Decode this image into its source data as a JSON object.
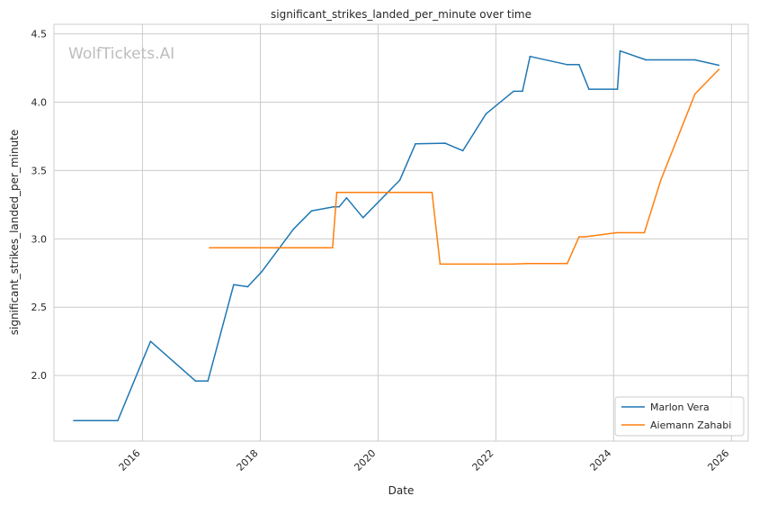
{
  "chart_data": {
    "type": "line",
    "title": "significant_strikes_landed_per_minute over time",
    "xlabel": "Date",
    "ylabel": "significant_strikes_landed_per_minute",
    "watermark": "WolfTickets.AI",
    "xlim": [
      "2014-07-01",
      "2026-04-15"
    ],
    "ylim": [
      1.52,
      4.57
    ],
    "x_ticks": [
      "2016",
      "2018",
      "2020",
      "2022",
      "2024",
      "2026"
    ],
    "y_ticks": [
      "2.0",
      "2.5",
      "3.0",
      "3.5",
      "4.0",
      "4.5"
    ],
    "grid": true,
    "legend_position": "lower right",
    "series": [
      {
        "name": "Marlon Vera",
        "color": "#1f77b4",
        "points": [
          [
            "2014-11-01",
            1.67
          ],
          [
            "2015-08-01",
            1.67
          ],
          [
            "2016-02-20",
            2.25
          ],
          [
            "2016-11-25",
            1.96
          ],
          [
            "2017-02-10",
            1.96
          ],
          [
            "2017-07-20",
            2.665
          ],
          [
            "2017-10-15",
            2.65
          ],
          [
            "2018-01-10",
            2.76
          ],
          [
            "2018-07-25",
            3.07
          ],
          [
            "2018-11-15",
            3.205
          ],
          [
            "2019-04-01",
            3.235
          ],
          [
            "2019-05-05",
            3.235
          ],
          [
            "2019-06-20",
            3.3
          ],
          [
            "2019-09-30",
            3.155
          ],
          [
            "2020-05-15",
            3.43
          ],
          [
            "2020-08-20",
            3.695
          ],
          [
            "2021-02-20",
            3.7
          ],
          [
            "2021-06-10",
            3.645
          ],
          [
            "2021-11-01",
            3.915
          ],
          [
            "2022-04-20",
            4.08
          ],
          [
            "2022-06-15",
            4.08
          ],
          [
            "2022-08-01",
            4.335
          ],
          [
            "2023-03-20",
            4.275
          ],
          [
            "2023-06-01",
            4.275
          ],
          [
            "2023-08-01",
            4.095
          ],
          [
            "2024-01-25",
            4.095
          ],
          [
            "2024-02-10",
            4.375
          ],
          [
            "2024-07-20",
            4.31
          ],
          [
            "2025-05-20",
            4.31
          ],
          [
            "2025-10-15",
            4.27
          ]
        ]
      },
      {
        "name": "Aiemann Zahabi",
        "color": "#ff7f0e",
        "points": [
          [
            "2017-02-20",
            2.935
          ],
          [
            "2019-03-25",
            2.935
          ],
          [
            "2019-04-20",
            3.34
          ],
          [
            "2020-12-01",
            3.34
          ],
          [
            "2021-01-20",
            2.815
          ],
          [
            "2022-04-10",
            2.815
          ],
          [
            "2022-07-15",
            2.82
          ],
          [
            "2023-03-20",
            2.82
          ],
          [
            "2023-06-01",
            3.015
          ],
          [
            "2023-07-05",
            3.015
          ],
          [
            "2024-01-20",
            3.045
          ],
          [
            "2024-07-10",
            3.045
          ],
          [
            "2024-10-20",
            3.43
          ],
          [
            "2025-05-20",
            4.06
          ],
          [
            "2025-10-15",
            4.24
          ]
        ]
      }
    ]
  }
}
